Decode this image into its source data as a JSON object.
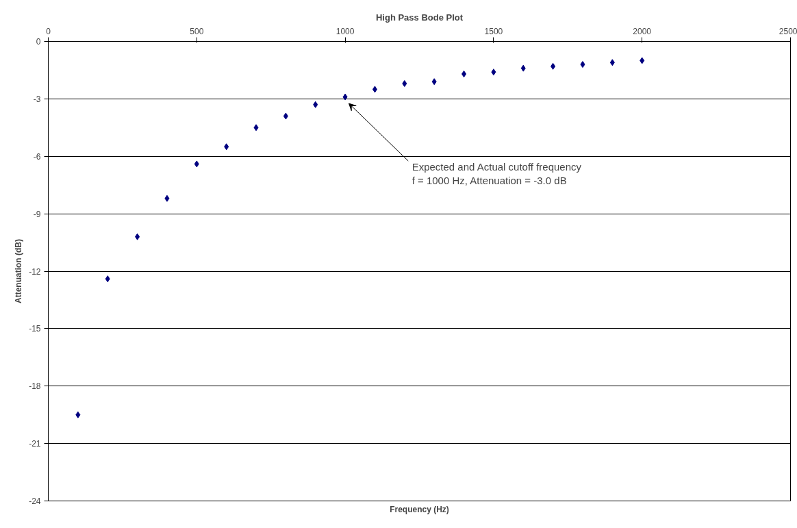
{
  "chart_data": {
    "type": "scatter",
    "title": "High Pass Bode Plot",
    "xlabel": "Frequency (Hz)",
    "ylabel": "Attenuation (dB)",
    "x": [
      100,
      200,
      300,
      400,
      500,
      600,
      700,
      800,
      900,
      1000,
      1100,
      1200,
      1300,
      1400,
      1500,
      1600,
      1700,
      1800,
      1900,
      2000
    ],
    "series": [
      {
        "color": "#000080",
        "values": [
          -19.5,
          -12.4,
          -10.2,
          -8.2,
          -6.4,
          -5.5,
          -4.5,
          -3.9,
          -3.3,
          -2.9,
          -2.5,
          -2.2,
          -2.1,
          -1.7,
          -1.6,
          -1.4,
          -1.3,
          -1.2,
          -1.1,
          -1.0
        ]
      }
    ],
    "xlim": [
      0,
      2500
    ],
    "xticks": [
      0,
      500,
      1000,
      1500,
      2000,
      2500
    ],
    "ylim": [
      -24,
      0
    ],
    "yticks": [
      -24,
      -21,
      -18,
      -15,
      -12,
      -9,
      -6,
      -3,
      0
    ],
    "grid": "y",
    "marker": "diamond",
    "annotations": [
      {
        "text": "Expected and Actual cutoff frequency\nf = 1000 Hz, Attenuation = -3.0 dB",
        "x": 1000,
        "y": -3
      }
    ]
  }
}
